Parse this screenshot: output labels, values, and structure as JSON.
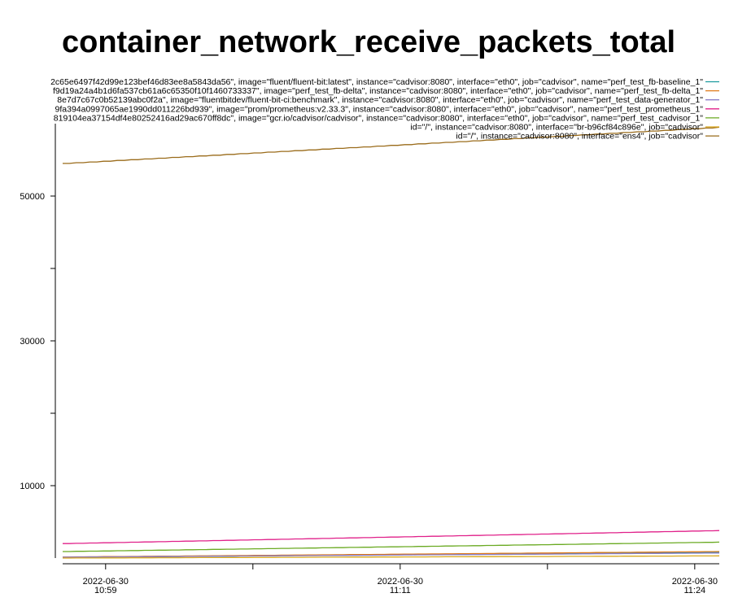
{
  "chart_data": {
    "type": "line",
    "title": "container_network_receive_packets_total",
    "xlabel": "",
    "ylabel": "",
    "ylim": [
      0,
      60000
    ],
    "y_ticks": [
      {
        "value": 10000,
        "label": "10000"
      },
      {
        "value": 20000,
        "label": ""
      },
      {
        "value": 30000,
        "label": "30000"
      },
      {
        "value": 40000,
        "label": ""
      },
      {
        "value": 50000,
        "label": "50000"
      }
    ],
    "x_ticks": [
      {
        "minutes": 0,
        "date": "2022-06-30",
        "time": "10:59"
      },
      {
        "minutes": 6,
        "date": "",
        "time": ""
      },
      {
        "minutes": 12,
        "date": "2022-06-30",
        "time": "11:11"
      },
      {
        "minutes": 18,
        "date": "",
        "time": ""
      },
      {
        "minutes": 24,
        "date": "2022-06-30",
        "time": "11:24"
      }
    ],
    "x_range_minutes": [
      -1.75,
      25.0
    ],
    "legend_position": "top-right",
    "series": [
      {
        "name": "2c65e6497f42d99e123bef46d83ee8a5843da56\", image=\"fluent/fluent-bit:latest\", instance=\"cadvisor:8080\", interface=\"eth0\", job=\"cadvisor\", name=\"perf_test_fb-baseline_1\"",
        "color": "#1a9a9e",
        "start": 100,
        "end": 800
      },
      {
        "name": "f9d19a24a4b1d6fa537cb61a6c65350f10f1460733337\", image=\"perf_test_fb-delta\", instance=\"cadvisor:8080\", interface=\"eth0\", job=\"cadvisor\", name=\"perf_test_fb-delta_1\"",
        "color": "#e07b1a",
        "start": 150,
        "end": 900
      },
      {
        "name": "8e7d7c67c0b52139abc0f2a\", image=\"fluentbitdev/fluent-bit-ci:benchmark\", instance=\"cadvisor:8080\", interface=\"eth0\", job=\"cadvisor\", name=\"perf_test_data-generator_1\"",
        "color": "#8a7fc8",
        "start": 120,
        "end": 700
      },
      {
        "name": "9fa394a0997065ae1990dd011226bd939\", image=\"prom/prometheus:v2.33.3\", instance=\"cadvisor:8080\", interface=\"eth0\", job=\"cadvisor\", name=\"perf_test_prometheus_1\"",
        "color": "#e0208a",
        "start": 2000,
        "end": 3800
      },
      {
        "name": "819104ea37154df4e80252416ad29ac670ff8dc\", image=\"gcr.io/cadvisor/cadvisor\", instance=\"cadvisor:8080\", interface=\"eth0\", job=\"cadvisor\", name=\"perf_test_cadvisor_1\"",
        "color": "#6aaa22",
        "start": 900,
        "end": 2200
      },
      {
        "name": "id=\"/\", instance=\"cadvisor:8080\", interface=\"br-b96cf84c896e\", job=\"cadvisor\"",
        "color": "#d9a81e",
        "start": 0,
        "end": 300
      },
      {
        "name": "id=\"/\", instance=\"cadvisor:8080\", interface=\"ens4\", job=\"cadvisor\"",
        "color": "#9a6b1a",
        "start": 54500,
        "end": 59500
      }
    ]
  }
}
